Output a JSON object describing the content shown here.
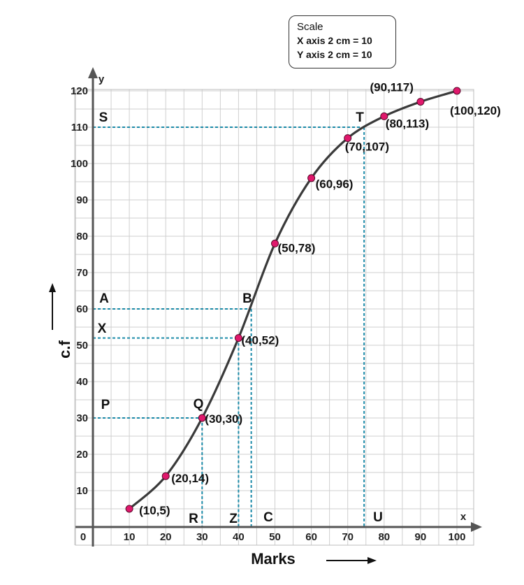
{
  "chart_data": {
    "type": "line",
    "xlabel": "Marks",
    "ylabel": "c.f",
    "x_axis_letter": "x",
    "y_axis_letter": "y",
    "origin_label": "0",
    "xlim": [
      0,
      100
    ],
    "ylim": [
      0,
      120
    ],
    "x_ticks": [
      "10",
      "20",
      "30",
      "40",
      "50",
      "60",
      "70",
      "80",
      "90",
      "100"
    ],
    "y_ticks": [
      "10",
      "20",
      "30",
      "40",
      "50",
      "60",
      "70",
      "80",
      "90",
      "100",
      "110",
      "120"
    ],
    "grid": true,
    "line_color": "#3a3a3a",
    "point_color": "#e0186c",
    "guide_color": "#1a8aa8",
    "points": [
      {
        "x": 10,
        "y": 5,
        "label": "(10,5)"
      },
      {
        "x": 20,
        "y": 14,
        "label": "(20,14)"
      },
      {
        "x": 30,
        "y": 30,
        "label": "(30,30)"
      },
      {
        "x": 40,
        "y": 52,
        "label": "(40,52)"
      },
      {
        "x": 50,
        "y": 78,
        "label": "(50,78)"
      },
      {
        "x": 60,
        "y": 96,
        "label": "(60,96)"
      },
      {
        "x": 70,
        "y": 107,
        "label": "(70,107)"
      },
      {
        "x": 80,
        "y": 113,
        "label": "(80,113)"
      },
      {
        "x": 90,
        "y": 117,
        "label": "(90,117)"
      },
      {
        "x": 100,
        "y": 120,
        "label": "(100,120)"
      }
    ],
    "guides": [
      {
        "name": "ab",
        "y": 60,
        "x_end": 43.5,
        "h_label": "A",
        "cross_label": "B",
        "v_label": "C"
      },
      {
        "name": "xz",
        "y": 52,
        "x_end": 40,
        "h_label": "X",
        "cross_label": "",
        "v_label": "Z"
      },
      {
        "name": "pq",
        "y": 30,
        "x_end": 30,
        "h_label": "P",
        "cross_label": "Q",
        "v_label": "R"
      },
      {
        "name": "st",
        "y": 110,
        "x_end": 74.5,
        "h_label": "S",
        "cross_label": "T",
        "v_label": "U"
      }
    ]
  },
  "legend": {
    "title": "Scale",
    "line1": "X axis 2 cm = 10",
    "line2": "Y axis 2 cm = 10"
  }
}
